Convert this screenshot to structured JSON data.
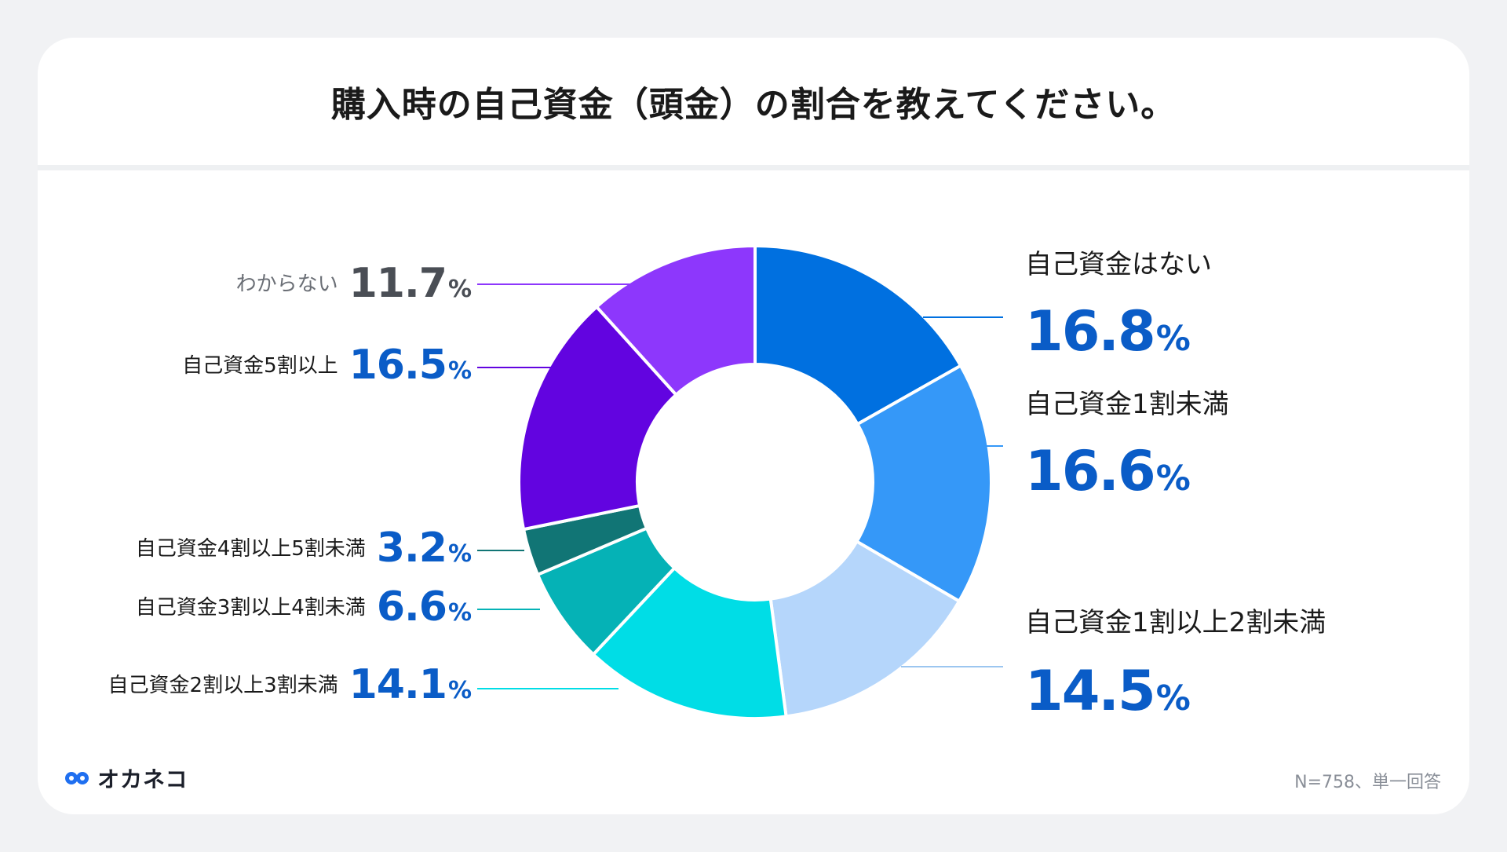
{
  "title": "購入時の自己資金（頭金）の割合を教えてください。",
  "brand": {
    "name": "オカネコ"
  },
  "footnote": "N=758、単一回答",
  "colors": {
    "line_label": "#1a1a1a",
    "muted_label": "#6b6f76",
    "value_blue": "#0a5cc7"
  },
  "chart_data": {
    "type": "pie",
    "donut": true,
    "unit": "%",
    "slices": [
      {
        "label": "自己資金はない",
        "value": 16.8,
        "value_text": "16.8",
        "color": "#0070e0"
      },
      {
        "label": "自己資金1割未満",
        "value": 16.6,
        "value_text": "16.6",
        "color": "#3598f8"
      },
      {
        "label": "自己資金1割以上2割未満",
        "value": 14.5,
        "value_text": "14.5",
        "color": "#b5d6fb"
      },
      {
        "label": "自己資金2割以上3割未満",
        "value": 14.1,
        "value_text": "14.1",
        "color": "#00dde6"
      },
      {
        "label": "自己資金3割以上4割未満",
        "value": 6.6,
        "value_text": "6.6",
        "color": "#05b2b6"
      },
      {
        "label": "自己資金4割以上5割未満",
        "value": 3.2,
        "value_text": "3.2",
        "color": "#117575"
      },
      {
        "label": "自己資金5割以上",
        "value": 16.5,
        "value_text": "16.5",
        "color": "#6204e0"
      },
      {
        "label": "わからない",
        "value": 11.7,
        "value_text": "11.7",
        "color": "#8d37fc"
      }
    ]
  }
}
